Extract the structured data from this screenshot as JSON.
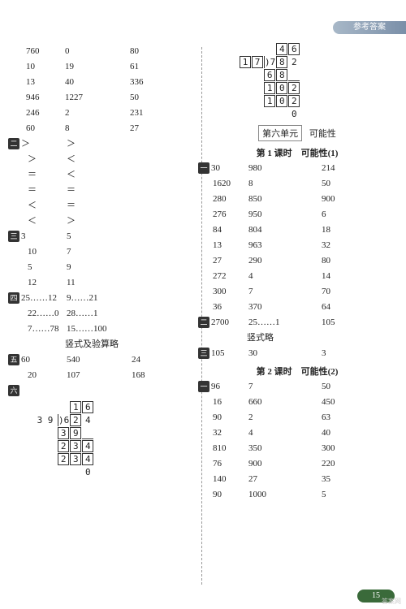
{
  "header": "参考答案",
  "footer_page": "15",
  "watermark": "答案网",
  "left": {
    "block1": [
      [
        "760",
        "0",
        "80"
      ],
      [
        "10",
        "19",
        "61"
      ],
      [
        "13",
        "40",
        "336"
      ],
      [
        "946",
        "1227",
        "50"
      ],
      [
        "246",
        "2",
        "231"
      ],
      [
        "60",
        "8",
        "27"
      ]
    ],
    "block2_rows": [
      [
        "＞",
        "＞"
      ],
      [
        "＞",
        "＜"
      ],
      [
        "＝",
        "＜"
      ],
      [
        "＝",
        "＝"
      ],
      [
        "＜",
        "＝"
      ],
      [
        "＜",
        "＞"
      ]
    ],
    "block3_rows": [
      [
        "3",
        "5"
      ],
      [
        "10",
        "7"
      ],
      [
        "5",
        "9"
      ],
      [
        "12",
        "11"
      ]
    ],
    "block4_rows": [
      [
        "25……12",
        "9……21"
      ],
      [
        "22……0",
        "28……1"
      ],
      [
        "7……78",
        "15……100"
      ]
    ],
    "block4_note": "竖式及验算略",
    "block5_rows": [
      [
        "60",
        "540",
        "24"
      ],
      [
        "20",
        "107",
        "168"
      ]
    ],
    "block6_div": {
      "divisor": "3 9",
      "quotient": [
        "1",
        "6"
      ],
      "dividend": [
        "6",
        "2",
        "4"
      ],
      "l1": [
        "3",
        "9"
      ],
      "l2": [
        "2",
        "3",
        "4"
      ],
      "l3": [
        "2",
        "3",
        "4"
      ],
      "rem": "0"
    },
    "badges": {
      "b2": "二",
      "b3": "三",
      "b4": "四",
      "b5": "五",
      "b6": "六"
    }
  },
  "right": {
    "top_div": {
      "divisor": [
        "1",
        "7"
      ],
      "quotient": [
        "4",
        "6"
      ],
      "dividend": [
        "7",
        "8",
        "2"
      ],
      "l1": [
        "6",
        "8"
      ],
      "l2": [
        "1",
        "0",
        "2"
      ],
      "l3": [
        "1",
        "0",
        "2"
      ],
      "rem": "0"
    },
    "unit_box": "第六单元",
    "unit_sub": "可能性",
    "lesson1_title": "第 1 课时　可能性(1)",
    "lesson1_b1": [
      [
        "30",
        "980",
        "214"
      ],
      [
        "1620",
        "8",
        "50"
      ],
      [
        "280",
        "850",
        "900"
      ],
      [
        "276",
        "950",
        "6"
      ],
      [
        "84",
        "804",
        "18"
      ],
      [
        "13",
        "963",
        "32"
      ],
      [
        "27",
        "290",
        "80"
      ],
      [
        "272",
        "4",
        "14"
      ],
      [
        "300",
        "7",
        "70"
      ],
      [
        "36",
        "370",
        "64"
      ]
    ],
    "lesson1_b2": [
      "2700",
      "25……1",
      "105"
    ],
    "lesson1_b2_note": "竖式略",
    "lesson1_b3": [
      "105",
      "30",
      "3"
    ],
    "lesson2_title": "第 2 课时　可能性(2)",
    "lesson2_b1": [
      [
        "96",
        "7",
        "50"
      ],
      [
        "16",
        "660",
        "450"
      ],
      [
        "90",
        "2",
        "63"
      ],
      [
        "32",
        "4",
        "40"
      ],
      [
        "810",
        "350",
        "300"
      ],
      [
        "76",
        "900",
        "220"
      ],
      [
        "140",
        "27",
        "35"
      ],
      [
        "90",
        "1000",
        "5"
      ]
    ],
    "badges": {
      "b1": "一",
      "b2": "二",
      "b3": "三"
    }
  }
}
